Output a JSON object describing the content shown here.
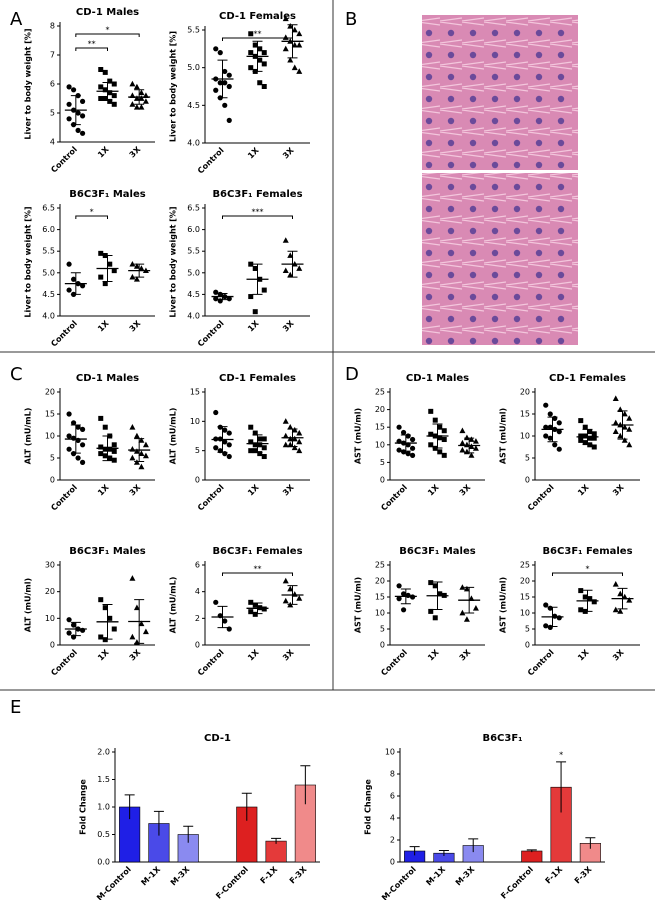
{
  "panel_labels": [
    "A",
    "B",
    "C",
    "D",
    "E"
  ],
  "chart_data": [
    {
      "type": "dot",
      "title": "CD-1 Males",
      "ylabel": "Liver to body weight [%]",
      "categories": [
        "Control",
        "1X",
        "3X"
      ],
      "ylim": [
        4,
        8
      ],
      "yticks": [
        4,
        5,
        6,
        7,
        8
      ],
      "groups": [
        {
          "marker": "circle",
          "points": [
            5.9,
            5.8,
            5.6,
            5.4,
            5.3,
            5.1,
            5.0,
            4.9,
            4.8,
            4.6,
            4.4,
            4.3
          ],
          "mean": 5.1,
          "sd": 0.5
        },
        {
          "marker": "square",
          "points": [
            6.5,
            6.4,
            6.1,
            6.0,
            5.9,
            5.8,
            5.7,
            5.6,
            5.5,
            5.5,
            5.4,
            5.3
          ],
          "mean": 5.75,
          "sd": 0.3
        },
        {
          "marker": "triangle",
          "points": [
            6.0,
            5.9,
            5.7,
            5.6,
            5.6,
            5.5,
            5.5,
            5.4,
            5.3,
            5.2,
            5.2
          ],
          "mean": 5.55,
          "sd": 0.25
        }
      ],
      "significance": [
        {
          "between": [
            0,
            2
          ],
          "label": "*"
        },
        {
          "between": [
            0,
            1
          ],
          "label": "**"
        }
      ]
    },
    {
      "type": "dot",
      "title": "CD-1 Females",
      "ylabel": "Liver to body weight [%]",
      "categories": [
        "Control",
        "1X",
        "3X"
      ],
      "ylim": [
        4,
        5.5
      ],
      "yticks": [
        {
          "value": 4,
          "label": "4.0"
        },
        4.5,
        {
          "value": 5,
          "label": "5.0"
        },
        5.5
      ],
      "groups": [
        {
          "marker": "circle",
          "points": [
            5.25,
            5.2,
            4.95,
            4.9,
            4.85,
            4.8,
            4.8,
            4.75,
            4.7,
            4.6,
            4.5,
            4.3
          ],
          "mean": 4.85,
          "sd": 0.25
        },
        {
          "marker": "square",
          "points": [
            5.45,
            5.3,
            5.25,
            5.2,
            5.2,
            5.15,
            5.1,
            5.05,
            5.0,
            4.95,
            4.8,
            4.75
          ],
          "mean": 5.15,
          "sd": 0.2
        },
        {
          "marker": "triangle",
          "points": [
            5.65,
            5.55,
            5.5,
            5.45,
            5.4,
            5.35,
            5.3,
            5.3,
            5.25,
            5.1,
            5.0,
            4.95
          ],
          "mean": 5.35,
          "sd": 0.22
        }
      ],
      "significance": [
        {
          "between": [
            0,
            2
          ],
          "label": "**"
        }
      ]
    },
    {
      "type": "dot",
      "title": "B6C3F₁ Males",
      "ylabel": "Liver to body weight [%]",
      "categories": [
        "Control",
        "1X",
        "3X"
      ],
      "ylim": [
        4,
        6.5
      ],
      "yticks": [
        {
          "value": 4,
          "label": "4.0"
        },
        4.5,
        {
          "value": 5,
          "label": "5.0"
        },
        5.5,
        {
          "value": 6,
          "label": "6.0"
        },
        6.5
      ],
      "groups": [
        {
          "marker": "circle",
          "points": [
            5.2,
            4.85,
            4.75,
            4.7,
            4.6,
            4.5
          ],
          "mean": 4.75,
          "sd": 0.25
        },
        {
          "marker": "square",
          "points": [
            5.45,
            5.4,
            5.2,
            5.05,
            4.9,
            4.75
          ],
          "mean": 5.1,
          "sd": 0.3
        },
        {
          "marker": "triangle",
          "points": [
            5.2,
            5.15,
            5.1,
            5.05,
            4.9,
            4.85
          ],
          "mean": 5.05,
          "sd": 0.15
        }
      ],
      "significance": [
        {
          "between": [
            0,
            1
          ],
          "label": "*"
        }
      ]
    },
    {
      "type": "dot",
      "title": "B6C3F₁ Females",
      "ylabel": "Liver to body weight [%]",
      "categories": [
        "Control",
        "1X",
        "3X"
      ],
      "ylim": [
        4,
        6.5
      ],
      "yticks": [
        {
          "value": 4,
          "label": "4.0"
        },
        4.5,
        {
          "value": 5,
          "label": "5.0"
        },
        5.5,
        {
          "value": 6,
          "label": "6.0"
        },
        6.5
      ],
      "groups": [
        {
          "marker": "circle",
          "points": [
            4.55,
            4.5,
            4.45,
            4.4,
            4.4,
            4.35
          ],
          "mean": 4.45,
          "sd": 0.07
        },
        {
          "marker": "square",
          "points": [
            5.2,
            5.1,
            4.85,
            4.6,
            4.45,
            4.1
          ],
          "mean": 4.85,
          "sd": 0.35
        },
        {
          "marker": "triangle",
          "points": [
            5.75,
            5.4,
            5.2,
            5.1,
            5.05,
            4.95
          ],
          "mean": 5.2,
          "sd": 0.3
        }
      ],
      "significance": [
        {
          "between": [
            0,
            2
          ],
          "label": "***"
        }
      ]
    },
    {
      "type": "dot",
      "title": "CD-1 Males",
      "ylabel": "ALT (mU/mL)",
      "categories": [
        "Control",
        "1X",
        "3X"
      ],
      "ylim": [
        0,
        20
      ],
      "yticks": [
        0,
        5,
        10,
        15,
        20
      ],
      "groups": [
        {
          "marker": "circle",
          "points": [
            15,
            13,
            12,
            11.5,
            10,
            9.5,
            9,
            8,
            7,
            6,
            5,
            4
          ],
          "mean": 9.3,
          "sd": 3.2
        },
        {
          "marker": "square",
          "points": [
            14,
            12,
            10,
            8,
            7.5,
            7,
            7,
            6.5,
            6,
            5.5,
            5,
            4.5
          ],
          "mean": 7.2,
          "sd": 2.8
        },
        {
          "marker": "triangle",
          "points": [
            12,
            10,
            9,
            8,
            7,
            6.5,
            6,
            5.5,
            5,
            4,
            3
          ],
          "mean": 6.8,
          "sd": 2.6
        }
      ],
      "significance": []
    },
    {
      "type": "dot",
      "title": "CD-1 Females",
      "ylabel": "ALT (mU/mL)",
      "categories": [
        "Control",
        "1X",
        "3X"
      ],
      "ylim": [
        0,
        15
      ],
      "yticks": [
        0,
        5,
        10,
        15
      ],
      "groups": [
        {
          "marker": "circle",
          "points": [
            11.5,
            9,
            8.5,
            8,
            7,
            7,
            6.5,
            6,
            5.5,
            5,
            4.5,
            4
          ],
          "mean": 6.9,
          "sd": 2.2
        },
        {
          "marker": "square",
          "points": [
            9,
            8,
            7,
            7,
            6.5,
            6,
            6,
            5.5,
            5,
            5,
            4.5,
            4
          ],
          "mean": 6.2,
          "sd": 1.5
        },
        {
          "marker": "triangle",
          "points": [
            10,
            9,
            8.5,
            8,
            7.5,
            7,
            7,
            6.5,
            6,
            6,
            5.5,
            5
          ],
          "mean": 7.2,
          "sd": 1.5
        }
      ],
      "significance": []
    },
    {
      "type": "dot",
      "title": "B6C3F₁ Males",
      "ylabel": "ALT (mU/ml)",
      "categories": [
        "Control",
        "1X",
        "3X"
      ],
      "ylim": [
        0,
        30
      ],
      "yticks": [
        0,
        10,
        20,
        30
      ],
      "groups": [
        {
          "marker": "circle",
          "points": [
            9.5,
            7.5,
            6,
            5.5,
            4.5,
            3
          ],
          "mean": 6,
          "sd": 2.5
        },
        {
          "marker": "square",
          "points": [
            17,
            14,
            10,
            6,
            3,
            2
          ],
          "mean": 8.7,
          "sd": 6.5
        },
        {
          "marker": "triangle",
          "points": [
            25,
            14,
            8,
            5,
            3,
            1
          ],
          "mean": 8.8,
          "sd": 8.2
        }
      ],
      "significance": []
    },
    {
      "type": "dot",
      "title": "B6C3F₁ Females",
      "ylabel": "ALT (mU/mL)",
      "categories": [
        "Control",
        "1X",
        "3X"
      ],
      "ylim": [
        0,
        6
      ],
      "yticks": [
        0,
        2,
        4,
        6
      ],
      "groups": [
        {
          "marker": "circle",
          "points": [
            3.2,
            2.2,
            1.8,
            1.2
          ],
          "mean": 2.1,
          "sd": 0.8
        },
        {
          "marker": "square",
          "points": [
            3.2,
            3.0,
            2.8,
            2.7,
            2.5,
            2.3
          ],
          "mean": 2.75,
          "sd": 0.4
        },
        {
          "marker": "triangle",
          "points": [
            4.8,
            4.2,
            3.8,
            3.5,
            3.3,
            3.0
          ],
          "mean": 3.75,
          "sd": 0.7
        }
      ],
      "significance": [
        {
          "between": [
            0,
            2
          ],
          "label": "**"
        }
      ]
    },
    {
      "type": "dot",
      "title": "CD-1 Males",
      "ylabel": "AST (mU/ml)",
      "categories": [
        "Control",
        "1X",
        "3X"
      ],
      "ylim": [
        0,
        25
      ],
      "yticks": [
        0,
        5,
        10,
        15,
        20,
        25
      ],
      "groups": [
        {
          "marker": "circle",
          "points": [
            15,
            13.5,
            12.5,
            11.5,
            11,
            10.5,
            10,
            9,
            8.5,
            8,
            7.5,
            7
          ],
          "mean": 10.5,
          "sd": 2.3
        },
        {
          "marker": "square",
          "points": [
            19.5,
            17,
            15,
            14,
            13,
            12.5,
            12,
            11.5,
            10,
            9,
            8,
            7
          ],
          "mean": 12.5,
          "sd": 3.4
        },
        {
          "marker": "triangle",
          "points": [
            14,
            12,
            11.5,
            11,
            10.5,
            10,
            9.5,
            9,
            8.5,
            8,
            7
          ],
          "mean": 9.8,
          "sd": 2.1
        }
      ],
      "significance": []
    },
    {
      "type": "dot",
      "title": "CD-1 Females",
      "ylabel": "AST (mU/ml)",
      "categories": [
        "Control",
        "1X",
        "3X"
      ],
      "ylim": [
        0,
        20
      ],
      "yticks": [
        0,
        5,
        10,
        15,
        20
      ],
      "groups": [
        {
          "marker": "circle",
          "points": [
            17,
            15,
            14,
            13,
            12,
            12,
            11.5,
            11,
            10,
            9.5,
            8,
            7
          ],
          "mean": 11.5,
          "sd": 2.8
        },
        {
          "marker": "square",
          "points": [
            13.5,
            12,
            11,
            10.5,
            10,
            10,
            9.5,
            9.5,
            9,
            8.5,
            8,
            7.5
          ],
          "mean": 9.8,
          "sd": 1.7
        },
        {
          "marker": "triangle",
          "points": [
            18.5,
            16,
            15,
            14,
            13,
            12.5,
            12,
            11.5,
            11,
            10,
            9,
            8
          ],
          "mean": 12.5,
          "sd": 3.2
        }
      ],
      "significance": []
    },
    {
      "type": "dot",
      "title": "B6C3F₁ Males",
      "ylabel": "AST (mU/ml)",
      "categories": [
        "Control",
        "1X",
        "3X"
      ],
      "ylim": [
        0,
        25
      ],
      "yticks": [
        0,
        5,
        10,
        15,
        20,
        25
      ],
      "groups": [
        {
          "marker": "circle",
          "points": [
            18.5,
            16,
            15.5,
            15,
            14.5,
            11
          ],
          "mean": 15.2,
          "sd": 2.3
        },
        {
          "marker": "square",
          "points": [
            19.5,
            18.5,
            16,
            15.5,
            10.5,
            8.5
          ],
          "mean": 15.4,
          "sd": 4.3
        },
        {
          "marker": "triangle",
          "points": [
            18,
            17.5,
            14.5,
            11.5,
            10,
            8
          ],
          "mean": 14,
          "sd": 4
        }
      ],
      "significance": []
    },
    {
      "type": "dot",
      "title": "B6C3F₁ Females",
      "ylabel": "AST (mU/ml)",
      "categories": [
        "Control",
        "1X",
        "3X"
      ],
      "ylim": [
        0,
        25
      ],
      "yticks": [
        0,
        5,
        10,
        15,
        20,
        25
      ],
      "groups": [
        {
          "marker": "circle",
          "points": [
            12.5,
            11.5,
            9,
            8.5,
            6,
            5.5
          ],
          "mean": 8.8,
          "sd": 3
        },
        {
          "marker": "square",
          "points": [
            17,
            15,
            14.5,
            13.5,
            11,
            10.5
          ],
          "mean": 13.8,
          "sd": 3.3
        },
        {
          "marker": "triangle",
          "points": [
            19,
            16,
            15,
            14,
            11,
            10.5
          ],
          "mean": 14.5,
          "sd": 3.2
        }
      ],
      "significance": [
        {
          "between": [
            0,
            2
          ],
          "label": "*"
        }
      ]
    },
    {
      "type": "bar",
      "title": "CD-1",
      "ylabel": "Fold Change",
      "categories": [
        "M-Control",
        "M-1X",
        "M-3X",
        "F-Control",
        "F-1X",
        "F-3X"
      ],
      "values": [
        1.0,
        0.7,
        0.5,
        1.0,
        0.38,
        1.4
      ],
      "errors": [
        0.22,
        0.22,
        0.15,
        0.25,
        0.05,
        0.35
      ],
      "colors": [
        "#1f1fe6",
        "#4a4ae8",
        "#8a8af0",
        "#dd2020",
        "#e43a3a",
        "#f08a8a"
      ],
      "ylim": [
        0,
        2
      ],
      "yticks": [
        {
          "value": 0,
          "label": "0.0"
        },
        0.5,
        {
          "value": 1,
          "label": "1.0"
        },
        1.5,
        {
          "value": 2,
          "label": "2.0"
        }
      ],
      "annotations": []
    },
    {
      "type": "bar",
      "title": "B6C3F₁",
      "ylabel": "Fold Change",
      "categories": [
        "M-Control",
        "M-1X",
        "M-3X",
        "F-Control",
        "F-1X",
        "F-3X"
      ],
      "values": [
        1.0,
        0.8,
        1.5,
        1.0,
        6.8,
        1.7
      ],
      "errors": [
        0.4,
        0.25,
        0.6,
        0.1,
        2.3,
        0.5
      ],
      "colors": [
        "#1f1fe6",
        "#4a4ae8",
        "#8a8af0",
        "#dd2020",
        "#e43a3a",
        "#f08a8a"
      ],
      "ylim": [
        0,
        10
      ],
      "yticks": [
        0,
        2,
        4,
        6,
        8,
        10
      ],
      "annotations": [
        {
          "index": 4,
          "text": "*"
        }
      ]
    }
  ]
}
